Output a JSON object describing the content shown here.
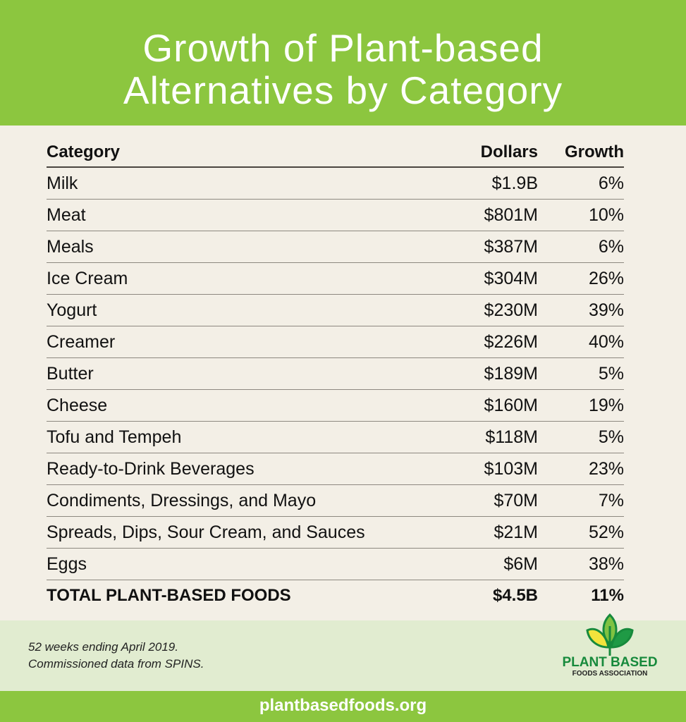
{
  "title": {
    "line1": "Growth of Plant-based",
    "line2": "Alternatives by Category"
  },
  "chart_data": {
    "type": "table",
    "title": "Growth of Plant-based Alternatives by Category",
    "columns": [
      "Category",
      "Dollars",
      "Growth"
    ],
    "rows": [
      [
        "Milk",
        "$1.9B",
        "6%"
      ],
      [
        "Meat",
        "$801M",
        "10%"
      ],
      [
        "Meals",
        "$387M",
        "6%"
      ],
      [
        "Ice Cream",
        "$304M",
        "26%"
      ],
      [
        "Yogurt",
        "$230M",
        "39%"
      ],
      [
        "Creamer",
        "$226M",
        "40%"
      ],
      [
        "Butter",
        "$189M",
        "5%"
      ],
      [
        "Cheese",
        "$160M",
        "19%"
      ],
      [
        "Tofu and Tempeh",
        "$118M",
        "5%"
      ],
      [
        "Ready-to-Drink Beverages",
        "$103M",
        "23%"
      ],
      [
        "Condiments, Dressings, and Mayo",
        "$70M",
        "7%"
      ],
      [
        "Spreads, Dips, Sour Cream, and Sauces",
        "$21M",
        "52%"
      ],
      [
        "Eggs",
        "$6M",
        "38%"
      ]
    ],
    "total": [
      "TOTAL PLANT-BASED FOODS",
      "$4.5B",
      "11%"
    ]
  },
  "footer": {
    "note_line1": "52 weeks ending April 2019.",
    "note_line2": "Commissioned data from SPINS.",
    "logo_line1": "PLANT BASED",
    "logo_line2": "FOODS ASSOCIATION",
    "url": "plantbasedfoods.org"
  },
  "colors": {
    "brand_green": "#8cc63f",
    "footer_bg": "#e1ecd0",
    "logo_green": "#178a3c"
  }
}
